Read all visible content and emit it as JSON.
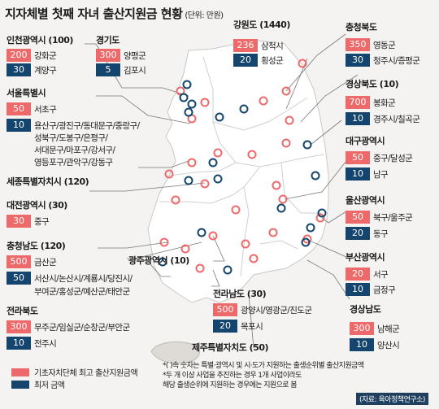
{
  "title": "지자체별 첫째 자녀 출산지원금 현황",
  "unit": "(단위: 만원)",
  "colors": {
    "high": "#ee6a6a",
    "low": "#14456e"
  },
  "regions": {
    "incheon": {
      "name": "인천광역시 (100)",
      "high": {
        "value": "200",
        "names": "강화군"
      },
      "low": {
        "value": "30",
        "names": "계양구"
      }
    },
    "gyeonggi": {
      "name": "경기도",
      "high": {
        "value": "300",
        "names": "양평군"
      },
      "low": {
        "value": "5",
        "names": "김포시"
      }
    },
    "seoul": {
      "name": "서울특별시",
      "high": {
        "value": "50",
        "names": "서초구"
      },
      "low": {
        "value": "10",
        "names": "용산구/광진구/동대문구/중랑구/"
      },
      "low_cont": [
        "성북구/도봉구/은평구/",
        "서대문구/마포구/강서구/",
        "영등포구/관악구/강동구"
      ]
    },
    "sejong": {
      "name": "세종특별자치시 (120)"
    },
    "daejeon": {
      "name": "대전광역시 (30)",
      "high": {
        "value": "30",
        "names": "중구"
      }
    },
    "chungnam": {
      "name": "충청남도 (120)",
      "high": {
        "value": "500",
        "names": "금산군"
      },
      "low": {
        "value": "50",
        "names": "서산시/논산시/계룡시/당진시/"
      },
      "low_cont": [
        "부여군/홍성군/예산군/태안군"
      ]
    },
    "jeonbuk": {
      "name": "전라북도",
      "high": {
        "value": "300",
        "names": "무주군/임실군/순창군/부안군"
      },
      "low": {
        "value": "10",
        "names": "전주시"
      }
    },
    "gangwon": {
      "name": "강원도 (1440)",
      "high": {
        "value": "236",
        "names": "삼척시"
      },
      "low": {
        "value": "20",
        "names": "횡성군"
      }
    },
    "chungbuk": {
      "name": "충청북도",
      "high": {
        "value": "350",
        "names": "영동군"
      },
      "low": {
        "value": "30",
        "names": "청주시/증평군"
      }
    },
    "gyeongbuk": {
      "name": "경상북도 (10)",
      "high": {
        "value": "700",
        "names": "봉화군"
      },
      "low": {
        "value": "10",
        "names": "경주시/칠곡군"
      }
    },
    "daegu": {
      "name": "대구광역시",
      "high": {
        "value": "50",
        "names": "중구/달성군"
      },
      "low": {
        "value": "10",
        "names": "남구"
      }
    },
    "ulsan": {
      "name": "울산광역시",
      "high": {
        "value": "50",
        "names": "북구/울주군"
      },
      "low": {
        "value": "20",
        "names": "동구"
      }
    },
    "busan": {
      "name": "부산광역시",
      "high": {
        "value": "20",
        "names": "서구"
      },
      "low": {
        "value": "10",
        "names": "금정구"
      }
    },
    "gwangju": {
      "name": "광주광역시 (10)"
    },
    "jeonnam": {
      "name": "전라남도 (30)",
      "high": {
        "value": "500",
        "names": "광양시/영광군/진도군"
      },
      "low": {
        "value": "20",
        "names": "목포시"
      }
    },
    "gyeongnam": {
      "name": "경상남도",
      "high": {
        "value": "300",
        "names": "남해군"
      },
      "low": {
        "value": "10",
        "names": "양산시"
      }
    },
    "jeju": {
      "name": "제주특별자치도 (50)"
    }
  },
  "legend": {
    "high": "기초자치단체 최고 출산지원금액",
    "low": "최저 금액"
  },
  "notes": [
    "*(  )속 숫자는 특별·광역시 및 시·도가 지원하는 출생순위별 출산지원금액",
    "*두 개 이상 사업을 추진하는 경우 1개 사업이라도",
    "  해당 출생순위에 지원하는 경우에는 지원으로 봄"
  ],
  "source": "(자료: 육아정책연구소)"
}
